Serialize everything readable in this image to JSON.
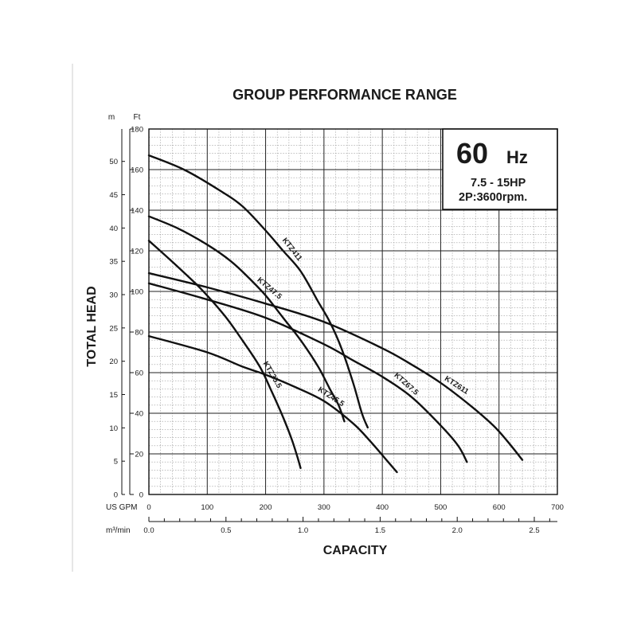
{
  "chart_data": {
    "type": "line",
    "title": "GROUP PERFORMANCE RANGE",
    "xlabel": "CAPACITY",
    "ylabel": "TOTAL HEAD",
    "x_unit_primary": "US GPM",
    "x_unit_secondary": "m³/min",
    "y_unit_primary": "Ft",
    "y_unit_secondary": "m",
    "xlim": [
      0,
      700
    ],
    "ylim": [
      0,
      180
    ],
    "x_ticks": [
      "0",
      "100",
      "200",
      "300",
      "400",
      "500",
      "600",
      "700"
    ],
    "x2_ticks": [
      "0.0",
      "0.5",
      "1.0",
      "1.5",
      "2.0",
      "2.5"
    ],
    "y_ticks": [
      "0",
      "20",
      "40",
      "60",
      "80",
      "100",
      "120",
      "140",
      "160",
      "180"
    ],
    "y2_ticks": [
      "0",
      "5",
      "10",
      "15",
      "20",
      "25",
      "30",
      "35",
      "40",
      "45",
      "50"
    ],
    "grid": true,
    "info_box": {
      "freq_value": "60",
      "freq_unit": "Hz",
      "power": "7.5 - 15HP",
      "speed": "2P:3600rpm."
    },
    "series": [
      {
        "name": "KTZ411",
        "x": [
          0,
          60,
          120,
          160,
          200,
          230,
          260,
          290,
          310,
          330,
          350,
          365,
          375
        ],
        "y": [
          167,
          160,
          150,
          142,
          130,
          120,
          110,
          95,
          85,
          72,
          55,
          40,
          33
        ]
      },
      {
        "name": "KTZ47.5",
        "x": [
          0,
          50,
          100,
          140,
          170,
          200,
          230,
          260,
          290,
          310,
          325,
          335
        ],
        "y": [
          137,
          131,
          123,
          115,
          107,
          98,
          87,
          76,
          63,
          52,
          44,
          36
        ]
      },
      {
        "name": "KTZ35.5",
        "x": [
          0,
          50,
          90,
          130,
          160,
          190,
          210,
          230,
          245,
          255,
          260
        ],
        "y": [
          125,
          112,
          101,
          88,
          76,
          63,
          51,
          38,
          27,
          18,
          13
        ]
      },
      {
        "name": "KTZ611",
        "x": [
          0,
          100,
          200,
          300,
          400,
          450,
          500,
          550,
          590,
          615,
          640
        ],
        "y": [
          109,
          102,
          94,
          85,
          72,
          64,
          55,
          44,
          34,
          26,
          17
        ]
      },
      {
        "name": "KTZ67.5",
        "x": [
          0,
          100,
          200,
          300,
          350,
          400,
          450,
          500,
          530,
          545
        ],
        "y": [
          104,
          96,
          87,
          74,
          66,
          58,
          48,
          34,
          24,
          16
        ]
      },
      {
        "name": "KTZ45.5",
        "x": [
          0,
          100,
          160,
          200,
          250,
          300,
          350,
          380,
          410,
          425
        ],
        "y": [
          78,
          70,
          63,
          59,
          53,
          46,
          35,
          26,
          16,
          11
        ]
      }
    ],
    "label_positions": [
      {
        "series": "KTZ411",
        "at_x": 235,
        "angle": 52
      },
      {
        "series": "KTZ47.5",
        "at_x": 198,
        "angle": 40
      },
      {
        "series": "KTZ35.5",
        "at_x": 200,
        "angle": 60
      },
      {
        "series": "KTZ611",
        "at_x": 520,
        "angle": 33
      },
      {
        "series": "KTZ67.5",
        "at_x": 432,
        "angle": 42
      },
      {
        "series": "KTZ45.5",
        "at_x": 305,
        "angle": 33
      }
    ]
  }
}
